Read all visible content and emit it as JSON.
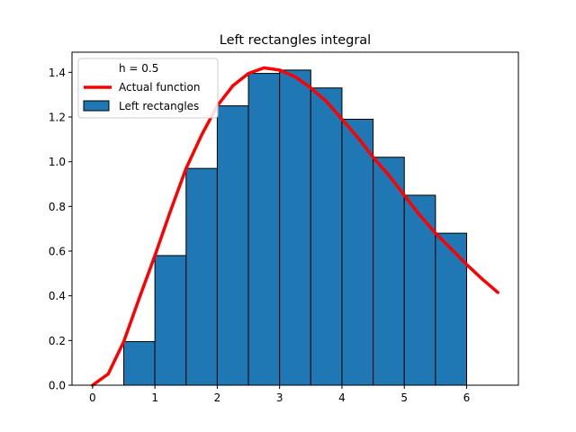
{
  "chart_data": {
    "type": "bar",
    "title": "Left rectangles integral",
    "xlabel": "",
    "ylabel": "",
    "xlim": [
      -0.33,
      6.83
    ],
    "ylim": [
      0,
      1.49
    ],
    "xticks": [
      0,
      1,
      2,
      3,
      4,
      5,
      6
    ],
    "yticks": [
      0.0,
      0.2,
      0.4,
      0.6,
      0.8,
      1.0,
      1.2,
      1.4
    ],
    "xtick_labels": [
      "0",
      "1",
      "2",
      "3",
      "4",
      "5",
      "6"
    ],
    "ytick_labels": [
      "0.0",
      "0.2",
      "0.4",
      "0.6",
      "0.8",
      "1.0",
      "1.2",
      "1.4"
    ],
    "grid": false,
    "legend_position": "top-left",
    "legend": {
      "header": "h = 0.5",
      "line_label": "Actual function",
      "bar_label": "Left rectangles"
    },
    "bar_width": 0.5,
    "bars": {
      "name": "Left rectangles",
      "color": "#1f77b4",
      "edge_color": "#000000",
      "left_edges": [
        0.5,
        1.0,
        1.5,
        2.0,
        2.5,
        3.0,
        3.5,
        4.0,
        4.5,
        5.0,
        5.5
      ],
      "heights": [
        0.195,
        0.58,
        0.97,
        1.25,
        1.395,
        1.41,
        1.33,
        1.19,
        1.02,
        0.85,
        0.68
      ]
    },
    "line": {
      "name": "Actual function",
      "color": "#ff0000",
      "x": [
        0,
        0.25,
        0.5,
        0.75,
        1.0,
        1.25,
        1.5,
        1.75,
        2.0,
        2.25,
        2.5,
        2.75,
        3.0,
        3.25,
        3.5,
        3.75,
        4.0,
        4.25,
        4.5,
        4.75,
        5.0,
        5.25,
        5.5,
        5.75,
        6.0,
        6.25,
        6.5
      ],
      "y": [
        0.0,
        0.05,
        0.195,
        0.39,
        0.58,
        0.78,
        0.97,
        1.12,
        1.25,
        1.34,
        1.395,
        1.42,
        1.41,
        1.38,
        1.33,
        1.27,
        1.19,
        1.11,
        1.02,
        0.94,
        0.85,
        0.76,
        0.68,
        0.61,
        0.54,
        0.475,
        0.415
      ]
    }
  }
}
